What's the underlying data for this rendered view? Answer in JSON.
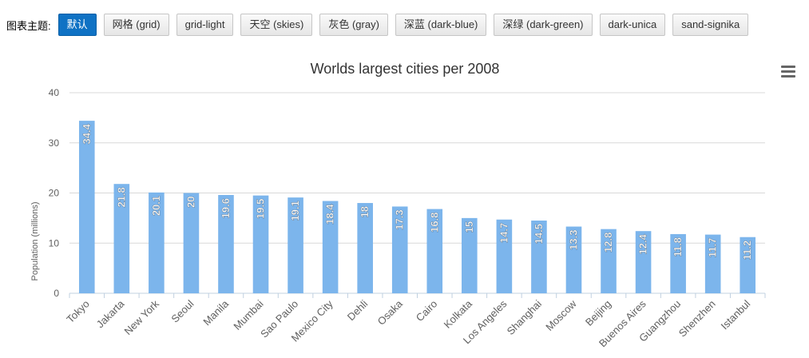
{
  "theme_bar": {
    "label": "图表主题:",
    "buttons": [
      "默认",
      "网格 (grid)",
      "grid-light",
      "天空 (skies)",
      "灰色 (gray)",
      "深蓝 (dark-blue)",
      "深绿 (dark-green)",
      "dark-unica",
      "sand-signika"
    ],
    "active_index": 0
  },
  "colors": {
    "bar": "#7cb5ec",
    "active_button": "#0f72c4",
    "gridline": "#d8d8d8",
    "axis_text": "#606060",
    "title_text": "#333333"
  },
  "chart_data": {
    "type": "bar",
    "title": "Worlds largest cities per 2008",
    "xlabel": "",
    "ylabel": "Population (millions)",
    "ylim": [
      0,
      40
    ],
    "yticks": [
      "0",
      "10",
      "20",
      "30",
      "40"
    ],
    "grid": true,
    "legend": "none",
    "categories": [
      "Tokyo",
      "Jakarta",
      "New York",
      "Seoul",
      "Manila",
      "Mumbai",
      "Sao Paulo",
      "Mexico City",
      "Dehli",
      "Osaka",
      "Cairo",
      "Kolkata",
      "Los Angeles",
      "Shanghai",
      "Moscow",
      "Beijing",
      "Buenos Aires",
      "Guangzhou",
      "Shenzhen",
      "Istanbul"
    ],
    "values": [
      34.4,
      21.8,
      20.1,
      20,
      19.6,
      19.5,
      19.1,
      18.4,
      18,
      17.3,
      16.8,
      15,
      14.7,
      14.5,
      13.3,
      12.8,
      12.4,
      11.8,
      11.7,
      11.2
    ],
    "data_labels": [
      "34.4",
      "21.8",
      "20.1",
      "20",
      "19.6",
      "19.5",
      "19.1",
      "18.4",
      "18",
      "17.3",
      "16.8",
      "15",
      "14.7",
      "14.5",
      "13.3",
      "12.8",
      "12.4",
      "11.8",
      "11.7",
      "11.2"
    ]
  },
  "menu_icon": "hamburger-menu-icon"
}
